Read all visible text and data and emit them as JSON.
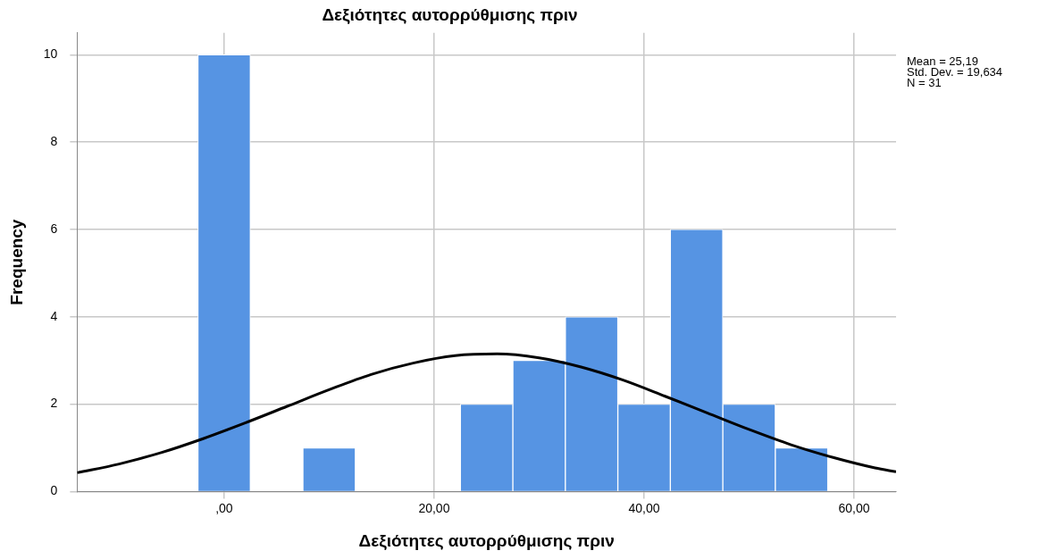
{
  "chart_data": {
    "type": "histogram",
    "title": "Δεξιότητες αυτορρύθμισης πριν",
    "xlabel": "Δεξιότητες αυτορρύθμισης πριν",
    "ylabel": "Frequency",
    "bins": [
      -2.5,
      2.5,
      7.5,
      12.5,
      17.5,
      22.5,
      27.5,
      32.5,
      37.5,
      42.5,
      47.5,
      52.5,
      57.5
    ],
    "values": [
      10,
      0,
      1,
      0,
      0,
      2,
      3,
      4,
      2,
      6,
      2,
      1
    ],
    "color": "#5694e3",
    "series": [
      {
        "type": "line",
        "color": "#000000",
        "x": [
          -14,
          -10,
          -6,
          -2,
          2,
          6,
          10,
          14,
          18,
          22,
          26,
          30,
          34,
          38,
          42,
          46,
          50,
          54,
          58,
          62,
          64
        ],
        "values": [
          0.43,
          0.63,
          0.89,
          1.21,
          1.57,
          1.95,
          2.33,
          2.68,
          2.94,
          3.11,
          3.15,
          3.06,
          2.85,
          2.55,
          2.18,
          1.8,
          1.42,
          1.07,
          0.78,
          0.54,
          0.45
        ]
      }
    ],
    "xlim": [
      -14,
      64
    ],
    "xticks": [
      {
        "value": 0,
        "label": ",00"
      },
      {
        "value": 20,
        "label": "20,00"
      },
      {
        "value": 40,
        "label": "40,00"
      },
      {
        "value": 60,
        "label": "60,00"
      }
    ],
    "ylim": [
      0,
      10.5
    ],
    "yticks": [
      0,
      2,
      4,
      6,
      8,
      10
    ],
    "grid": true,
    "legend": false,
    "annotations": [
      "Mean = 25,19",
      "Std. Dev. = 19,634",
      "N = 31"
    ]
  }
}
